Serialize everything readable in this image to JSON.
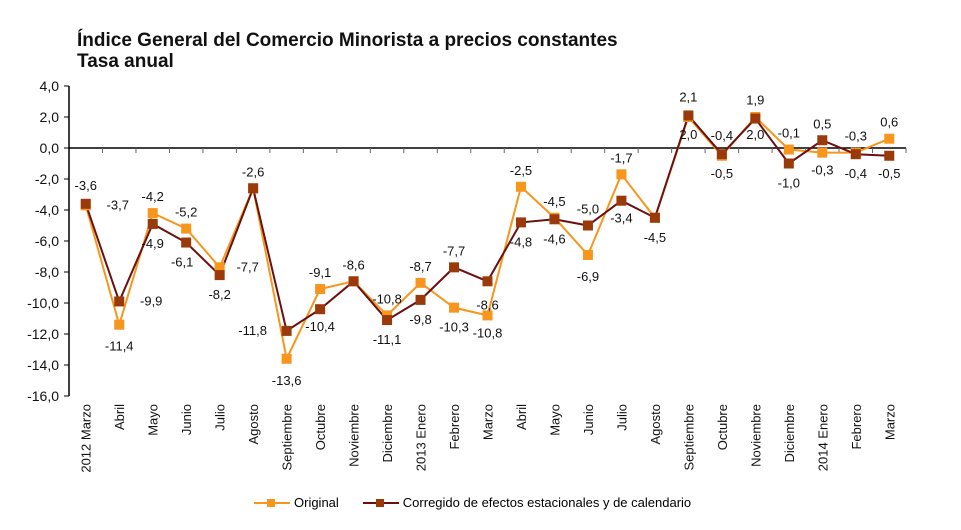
{
  "chart_data": {
    "type": "line",
    "title": "Índice General del Comercio Minorista a precios constantes",
    "subtitle": "Tasa anual",
    "xlabel": "",
    "ylabel": "",
    "ylim": [
      -16,
      4
    ],
    "yticks": [
      4,
      2,
      0,
      -2,
      -4,
      -6,
      -8,
      -10,
      -12,
      -14,
      -16
    ],
    "ytick_labels": [
      "4,0",
      "2,0",
      "0,0",
      "-2,0",
      "-4,0",
      "-6,0",
      "-8,0",
      "-10,0",
      "-12,0",
      "-14,0",
      "-16,0"
    ],
    "grid": false,
    "legend_position": "bottom",
    "categories": [
      "2012 Marzo",
      "Abril",
      "Mayo",
      "Junio",
      "Julio",
      "Agosto",
      "Septiembre",
      "Octubre",
      "Noviembre",
      "Diciembre",
      "2013 Enero",
      "Febrero",
      "Marzo",
      "Abril",
      "Mayo",
      "Junio",
      "Julio",
      "Agosto",
      "Septiembre",
      "Octubre",
      "Noviembre",
      "Diciembre",
      "2014 Enero",
      "Febrero",
      "Marzo"
    ],
    "series": [
      {
        "name": "Original",
        "color": "#F7961D",
        "values": [
          -3.7,
          -11.4,
          -4.2,
          -5.2,
          -7.7,
          -2.6,
          -13.6,
          -9.1,
          -8.6,
          -10.8,
          -8.7,
          -10.3,
          -10.8,
          -2.5,
          -4.5,
          -6.9,
          -1.7,
          -4.5,
          2.0,
          -0.5,
          2.0,
          -0.1,
          -0.3,
          -0.3,
          0.6
        ],
        "labels": [
          "-3,7",
          "-11,4",
          "-4,2",
          "-5,2",
          "-7,7",
          "-2,6",
          "-13,6",
          "-9,1",
          "-8,6",
          "-10,8",
          "-8,7",
          "-10,3",
          "-10,8",
          "-2,5",
          "-4,5",
          "-6,9",
          "-1,7",
          "-4,5",
          "2,0",
          "-0,5",
          "2,0",
          "-0,1",
          "-0,3",
          "-0,3",
          "0,6"
        ]
      },
      {
        "name": "Corregido de efectos estacionales y de calendario",
        "color": "#9A3A0A",
        "line_color": "#6B1010",
        "values": [
          -3.6,
          -9.9,
          -4.9,
          -6.1,
          -8.2,
          -2.6,
          -11.8,
          -10.4,
          -8.6,
          -11.1,
          -9.8,
          -7.7,
          -8.6,
          -4.8,
          -4.6,
          -5.0,
          -3.4,
          -4.5,
          2.1,
          -0.4,
          1.9,
          -1.0,
          0.5,
          -0.4,
          -0.5
        ],
        "labels": [
          "-3,6",
          "-9,9",
          "-4,9",
          "-6,1",
          "-8,2",
          "-2,6",
          "-11,8",
          "-10,4",
          "-8,6",
          "-11,1",
          "-9,8",
          "-7,7",
          "-8,6",
          "-4,8",
          "-4,6",
          "-5,0",
          "-3,4",
          "-4,5",
          "2,1",
          "-0,4",
          "1,9",
          "-1,0",
          "0,5",
          "-0,4",
          "-0,5"
        ]
      }
    ]
  },
  "legend": {
    "original_label": "Original",
    "corregido_label": "Corregido de efectos estacionales y de calendario"
  }
}
